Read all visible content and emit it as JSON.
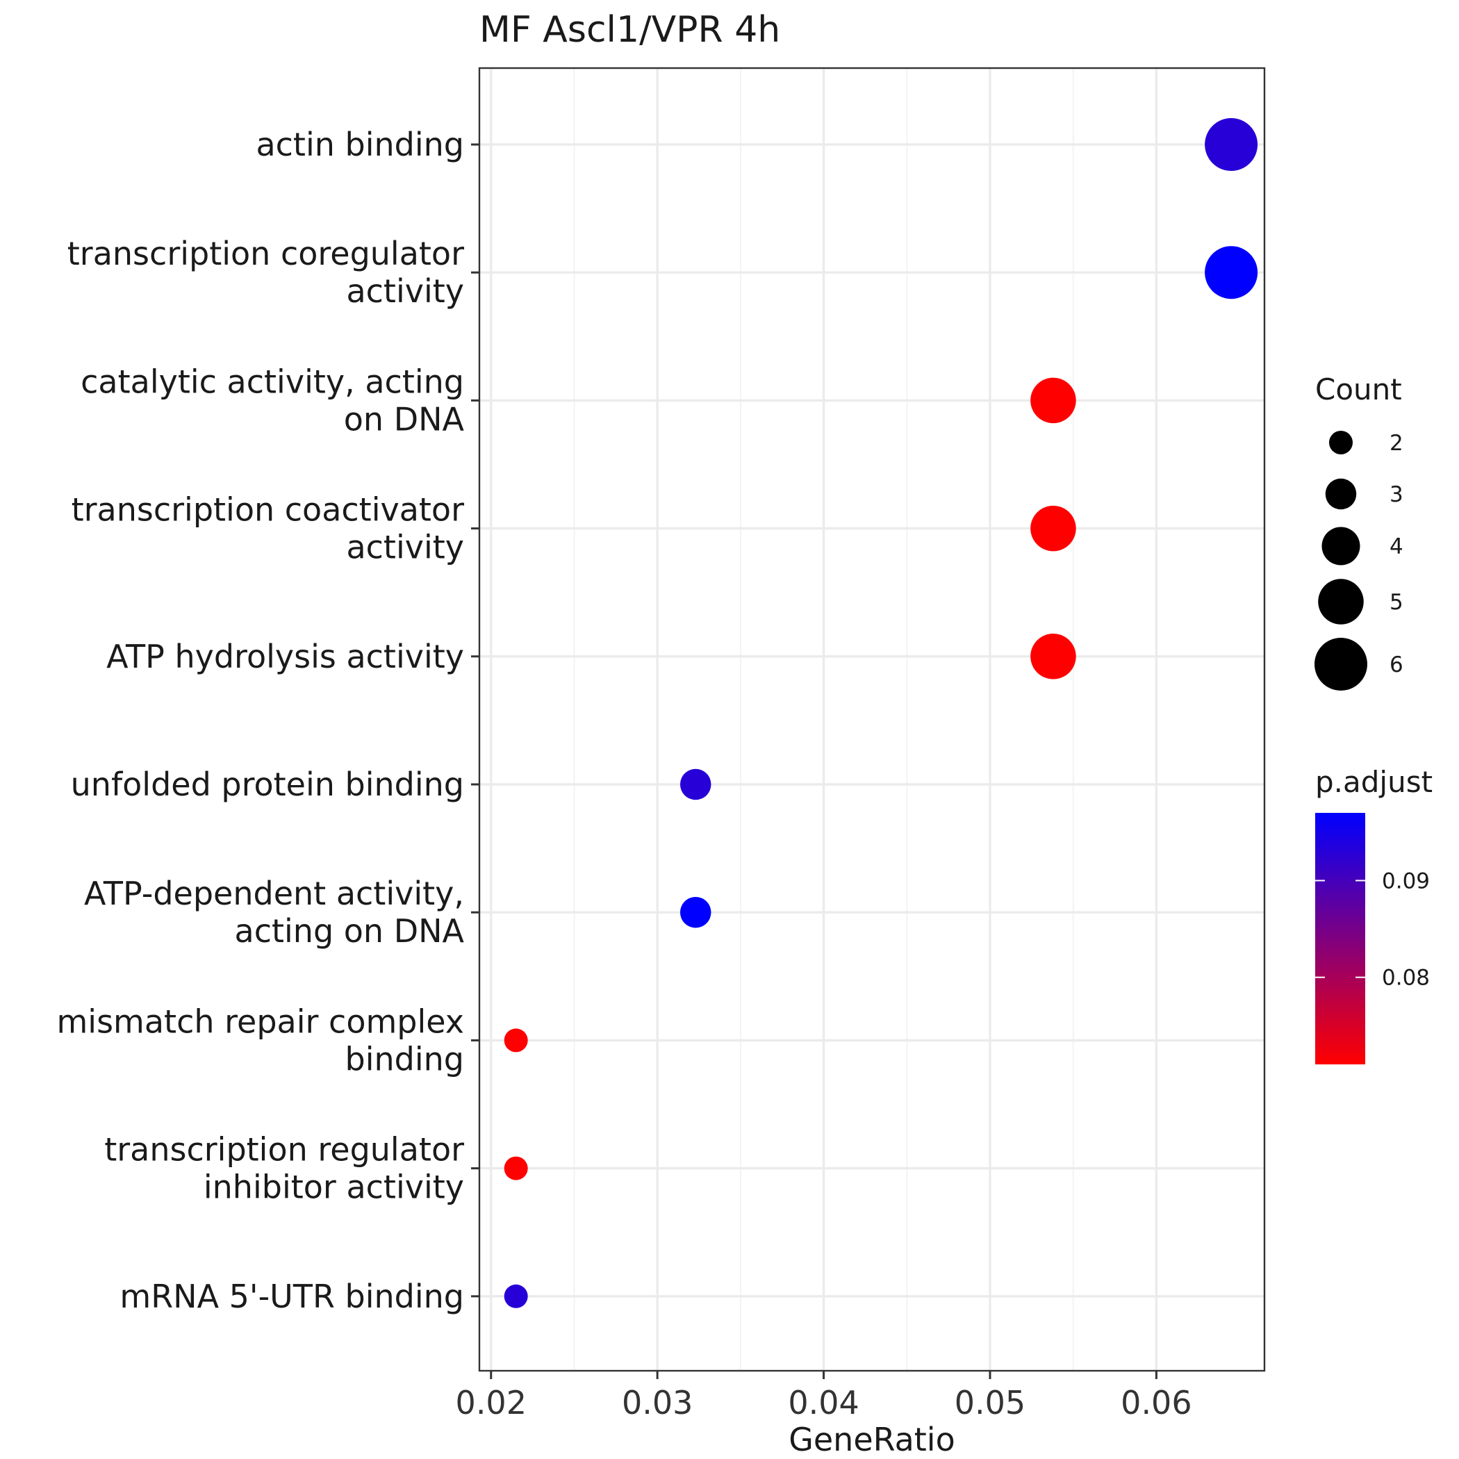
{
  "chart_data": {
    "type": "scatter",
    "title": "MF Ascl1/VPR 4h",
    "xlabel": "GeneRatio",
    "ylabel": "",
    "xlim": [
      0.0193,
      0.0665
    ],
    "x_ticks": [
      "0.02",
      "0.03",
      "0.04",
      "0.05",
      "0.06"
    ],
    "x_tick_values": [
      0.02,
      0.03,
      0.04,
      0.05,
      0.06
    ],
    "grid": true,
    "categories": [
      "actin binding",
      "transcription coregulator\nactivity",
      "catalytic activity, acting\non DNA",
      "transcription coactivator\nactivity",
      "ATP hydrolysis activity",
      "unfolded protein binding",
      "ATP-dependent activity,\nacting on DNA",
      "mismatch repair complex\nbinding",
      "transcription regulator\ninhibitor activity",
      "mRNA 5'-UTR binding"
    ],
    "points": [
      {
        "category": "actin binding",
        "gene_ratio": 0.0645,
        "count": 6,
        "p_adjust": 0.093
      },
      {
        "category": "transcription coregulator activity",
        "gene_ratio": 0.0645,
        "count": 6,
        "p_adjust": 0.097
      },
      {
        "category": "catalytic activity, acting on DNA",
        "gene_ratio": 0.0538,
        "count": 5,
        "p_adjust": 0.071
      },
      {
        "category": "transcription coactivator activity",
        "gene_ratio": 0.0538,
        "count": 5,
        "p_adjust": 0.071
      },
      {
        "category": "ATP hydrolysis activity",
        "gene_ratio": 0.0538,
        "count": 5,
        "p_adjust": 0.071
      },
      {
        "category": "unfolded protein binding",
        "gene_ratio": 0.0323,
        "count": 3,
        "p_adjust": 0.093
      },
      {
        "category": "ATP-dependent activity, acting on DNA",
        "gene_ratio": 0.0323,
        "count": 3,
        "p_adjust": 0.097
      },
      {
        "category": "mismatch repair complex binding",
        "gene_ratio": 0.0215,
        "count": 2,
        "p_adjust": 0.071
      },
      {
        "category": "transcription regulator inhibitor activity",
        "gene_ratio": 0.0215,
        "count": 2,
        "p_adjust": 0.071
      },
      {
        "category": "mRNA 5'-UTR binding",
        "gene_ratio": 0.0215,
        "count": 2,
        "p_adjust": 0.093
      }
    ],
    "size_legend": {
      "title": "Count",
      "values": [
        2,
        3,
        4,
        5,
        6
      ],
      "labels": [
        "2",
        "3",
        "4",
        "5",
        "6"
      ]
    },
    "color_legend": {
      "title": "p.adjust",
      "range": [
        0.071,
        0.097
      ],
      "ticks": [
        0.08,
        0.09
      ],
      "tick_labels": [
        "0.08",
        "0.09"
      ],
      "low_color": "#ff0000",
      "high_color": "#0000ff"
    },
    "legend_position": "right"
  }
}
